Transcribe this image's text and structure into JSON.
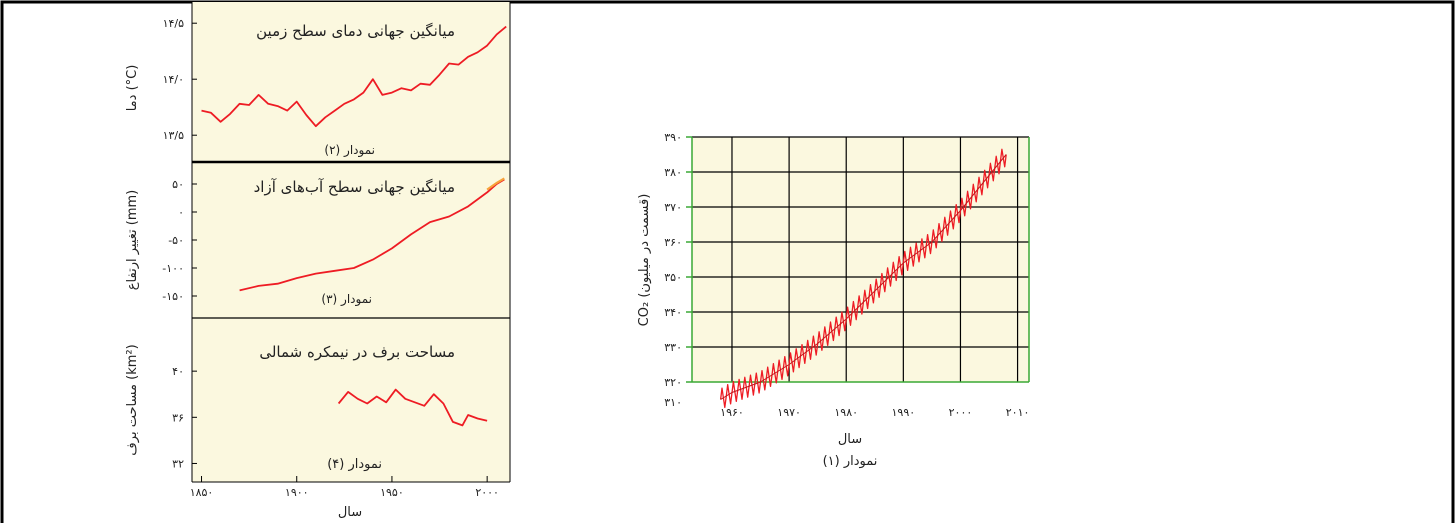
{
  "colors": {
    "panel_bg": "#fbf8df",
    "line": "#ee1c24",
    "grid": "#000000",
    "co2_axis": "#3aa935",
    "sea_level_tail": "#f7a23a"
  },
  "chart_data": [
    {
      "type": "line",
      "title": "میانگین جهانی دمای سطح زمین",
      "caption": "نمودار (۲)",
      "ylabel": "دما (°C)",
      "ylim": [
        13.35,
        14.6
      ],
      "yticks": [
        13.5,
        14.0,
        14.5
      ],
      "ytick_labels": [
        "۱۳/۵",
        "۱۴/۰",
        "۱۴/۵"
      ],
      "xlim": [
        1845,
        2012
      ],
      "series": [
        {
          "x": [
            1850,
            1855,
            1860,
            1865,
            1870,
            1875,
            1880,
            1885,
            1890,
            1895,
            1900,
            1905,
            1910,
            1915,
            1920,
            1925,
            1930,
            1935,
            1940,
            1945,
            1950,
            1955,
            1960,
            1965,
            1970,
            1975,
            1980,
            1985,
            1990,
            1995,
            2000,
            2005,
            2010
          ],
          "values": [
            13.72,
            13.7,
            13.62,
            13.69,
            13.78,
            13.77,
            13.86,
            13.78,
            13.76,
            13.72,
            13.8,
            13.68,
            13.58,
            13.66,
            13.72,
            13.78,
            13.82,
            13.88,
            14.0,
            13.86,
            13.88,
            13.92,
            13.9,
            13.96,
            13.95,
            14.04,
            14.14,
            14.13,
            14.2,
            14.24,
            14.3,
            14.4,
            14.47
          ]
        }
      ]
    },
    {
      "type": "line",
      "title": "میانگین جهانی سطح آب‌های آزاد",
      "caption": "نمودار (۳)",
      "ylabel": "تغییر ارتفاع (mm)",
      "ylim": [
        -175,
        75
      ],
      "yticks": [
        50,
        0,
        -50,
        -100,
        -150
      ],
      "ytick_labels": [
        "۵۰",
        "۰",
        "-۵۰",
        "-۱۰۰",
        "-۱۵۰"
      ],
      "xlim": [
        1845,
        2012
      ],
      "series": [
        {
          "x": [
            1870,
            1880,
            1890,
            1900,
            1910,
            1920,
            1930,
            1940,
            1950,
            1960,
            1970,
            1980,
            1990,
            2000,
            2005,
            2009
          ],
          "values": [
            -140,
            -132,
            -128,
            -118,
            -110,
            -105,
            -100,
            -85,
            -65,
            -40,
            -18,
            -8,
            10,
            35,
            50,
            58
          ]
        }
      ],
      "tail_series": {
        "x": [
          2000,
          2005,
          2009
        ],
        "values": [
          40,
          52,
          60
        ]
      }
    },
    {
      "type": "line",
      "title": "مساحت برف در نیمکره شمالی",
      "caption": "نمودار (۴)",
      "ylabel": "مساحت برف (km²)",
      "ylim": [
        31,
        44
      ],
      "yticks": [
        40,
        36,
        32
      ],
      "ytick_labels": [
        "۴۰",
        "۳۶",
        "۳۲"
      ],
      "xlim": [
        1845,
        2012
      ],
      "xticks": [
        1850,
        1900,
        1950,
        2000
      ],
      "xtick_labels": [
        "۱۸۵۰",
        "۱۹۰۰",
        "۱۹۵۰",
        "۲۰۰۰"
      ],
      "xlabel": "سال",
      "series": [
        {
          "x": [
            1922,
            1927,
            1932,
            1937,
            1942,
            1947,
            1952,
            1957,
            1962,
            1967,
            1972,
            1977,
            1982,
            1987,
            1990,
            1995,
            2000
          ],
          "values": [
            37.2,
            38.2,
            37.6,
            37.2,
            37.8,
            37.3,
            38.4,
            37.6,
            37.3,
            37.0,
            38.0,
            37.2,
            35.6,
            35.3,
            36.2,
            35.9,
            35.7
          ]
        }
      ]
    },
    {
      "type": "line",
      "title": "",
      "caption": "نمودار (۱)",
      "xlabel": "سال",
      "ylabel": "CO₂ (قسمت در میلیون)",
      "ylim": [
        310,
        390
      ],
      "xlim": [
        1953,
        2012
      ],
      "yticks": [
        310,
        320,
        330,
        340,
        350,
        360,
        370,
        380,
        390
      ],
      "ytick_labels": [
        "۳۱۰",
        "۳۲۰",
        "۳۳۰",
        "۳۴۰",
        "۳۵۰",
        "۳۶۰",
        "۳۷۰",
        "۳۸۰",
        "۳۹۰"
      ],
      "xticks": [
        1960,
        1970,
        1980,
        1990,
        2000,
        2010
      ],
      "xtick_labels": [
        "۱۹۶۰",
        "۱۹۷۰",
        "۱۹۸۰",
        "۱۹۹۰",
        "۲۰۰۰",
        "۲۰۱۰"
      ],
      "series": [
        {
          "x": [
            1958,
            1960,
            1965,
            1970,
            1975,
            1980,
            1985,
            1990,
            1995,
            2000,
            2005,
            2008
          ],
          "values": [
            315,
            317,
            320,
            325,
            331,
            338,
            346,
            354,
            360,
            369,
            379,
            385
          ],
          "seasonal_amplitude": 3
        }
      ]
    }
  ]
}
